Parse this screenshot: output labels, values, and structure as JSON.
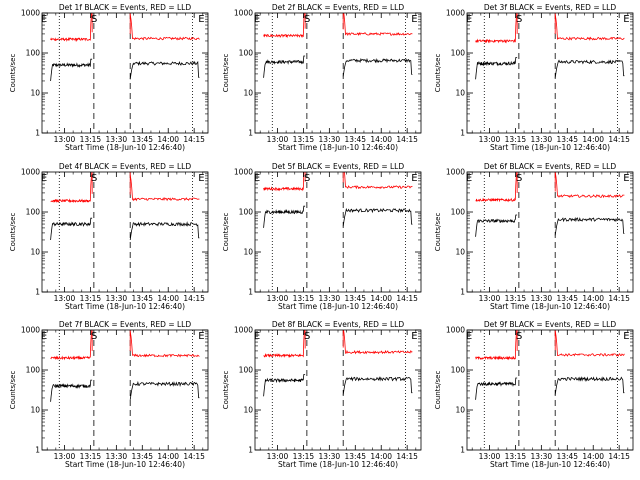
{
  "figure": {
    "background": "#ffffff",
    "axis_color": "#000000",
    "events_color": "#000000",
    "lld_color": "#ff0000"
  },
  "chart_data": [
    {
      "type": "line",
      "title": "Det 1f BLACK = Events, RED = LLD",
      "xlabel": "Start Time (18-Jun-10 12:46:40)",
      "ylabel": "Counts/sec",
      "yscale": "log",
      "ylim": [
        1,
        1000
      ],
      "xlim": [
        "12:47",
        "14:23"
      ],
      "x_ticks": [
        "13:00",
        "13:15",
        "13:30",
        "13:45",
        "14:00",
        "14:15"
      ],
      "y_ticks": [
        "1",
        "10",
        "100",
        "1000"
      ],
      "markers": [
        {
          "label": "E",
          "time": "12:47"
        },
        {
          "label": "S",
          "time": "13:16"
        },
        {
          "label": "E",
          "time": "14:18"
        }
      ],
      "dotted_lines": [
        "12:57",
        "14:14"
      ],
      "dashed_lines": [
        "13:17",
        "13:38"
      ],
      "series": [
        {
          "name": "Events",
          "color": "#000000",
          "segments": [
            {
              "start": "12:52",
              "end": "13:16",
              "level": 50
            },
            {
              "start": "13:38",
              "end": "14:18",
              "level": 55
            }
          ]
        },
        {
          "name": "LLD",
          "color": "#ff0000",
          "segments": [
            {
              "start": "12:52",
              "end": "13:16",
              "level": 220
            },
            {
              "start": "13:38",
              "end": "14:18",
              "level": 230
            }
          ]
        }
      ]
    },
    {
      "type": "line",
      "title": "Det 2f BLACK = Events, RED = LLD",
      "xlabel": "Start Time (18-Jun-10 12:46:40)",
      "ylabel": "Counts/sec",
      "yscale": "log",
      "ylim": [
        1,
        1000
      ],
      "xlim": [
        "12:47",
        "14:23"
      ],
      "x_ticks": [
        "13:00",
        "13:15",
        "13:30",
        "13:45",
        "14:00",
        "14:15"
      ],
      "y_ticks": [
        "1",
        "10",
        "100",
        "1000"
      ],
      "markers": [
        {
          "label": "E",
          "time": "12:47"
        },
        {
          "label": "S",
          "time": "13:16"
        },
        {
          "label": "E",
          "time": "14:18"
        }
      ],
      "dotted_lines": [
        "12:57",
        "14:14"
      ],
      "dashed_lines": [
        "13:17",
        "13:38"
      ],
      "series": [
        {
          "name": "Events",
          "color": "#000000",
          "segments": [
            {
              "start": "12:52",
              "end": "13:16",
              "level": 60
            },
            {
              "start": "13:38",
              "end": "14:18",
              "level": 65
            }
          ]
        },
        {
          "name": "LLD",
          "color": "#ff0000",
          "segments": [
            {
              "start": "12:52",
              "end": "13:16",
              "level": 270
            },
            {
              "start": "13:38",
              "end": "14:18",
              "level": 300
            }
          ]
        }
      ]
    },
    {
      "type": "line",
      "title": "Det 3f BLACK = Events, RED = LLD",
      "xlabel": "Start Time (18-Jun-10 12:46:40)",
      "ylabel": "Counts/sec",
      "yscale": "log",
      "ylim": [
        1,
        1000
      ],
      "xlim": [
        "12:47",
        "14:23"
      ],
      "x_ticks": [
        "13:00",
        "13:15",
        "13:30",
        "13:45",
        "14:00",
        "14:15"
      ],
      "y_ticks": [
        "1",
        "10",
        "100",
        "1000"
      ],
      "markers": [
        {
          "label": "E",
          "time": "12:47"
        },
        {
          "label": "S",
          "time": "13:16"
        },
        {
          "label": "E",
          "time": "14:18"
        }
      ],
      "dotted_lines": [
        "12:57",
        "14:14"
      ],
      "dashed_lines": [
        "13:17",
        "13:38"
      ],
      "series": [
        {
          "name": "Events",
          "color": "#000000",
          "segments": [
            {
              "start": "12:52",
              "end": "13:16",
              "level": 55
            },
            {
              "start": "13:38",
              "end": "14:18",
              "level": 60
            }
          ]
        },
        {
          "name": "LLD",
          "color": "#ff0000",
          "segments": [
            {
              "start": "12:52",
              "end": "13:16",
              "level": 200
            },
            {
              "start": "13:38",
              "end": "14:18",
              "level": 230
            }
          ]
        }
      ]
    },
    {
      "type": "line",
      "title": "Det 4f BLACK = Events, RED = LLD",
      "xlabel": "Start Time (18-Jun-10 12:46:40)",
      "ylabel": "Counts/sec",
      "yscale": "log",
      "ylim": [
        1,
        1000
      ],
      "xlim": [
        "12:47",
        "14:23"
      ],
      "x_ticks": [
        "13:00",
        "13:15",
        "13:30",
        "13:45",
        "14:00",
        "14:15"
      ],
      "y_ticks": [
        "1",
        "10",
        "100",
        "1000"
      ],
      "markers": [
        {
          "label": "E",
          "time": "12:47"
        },
        {
          "label": "S",
          "time": "13:16"
        },
        {
          "label": "E",
          "time": "14:18"
        }
      ],
      "dotted_lines": [
        "12:57",
        "14:14"
      ],
      "dashed_lines": [
        "13:17",
        "13:38"
      ],
      "series": [
        {
          "name": "Events",
          "color": "#000000",
          "segments": [
            {
              "start": "12:52",
              "end": "13:16",
              "level": 50
            },
            {
              "start": "13:38",
              "end": "14:18",
              "level": 50
            }
          ]
        },
        {
          "name": "LLD",
          "color": "#ff0000",
          "segments": [
            {
              "start": "12:52",
              "end": "13:16",
              "level": 190
            },
            {
              "start": "13:38",
              "end": "14:18",
              "level": 210
            }
          ]
        }
      ]
    },
    {
      "type": "line",
      "title": "Det 5f BLACK = Events, RED = LLD",
      "xlabel": "Start Time (18-Jun-10 12:46:40)",
      "ylabel": "Counts/sec",
      "yscale": "log",
      "ylim": [
        1,
        1000
      ],
      "xlim": [
        "12:47",
        "14:23"
      ],
      "x_ticks": [
        "13:00",
        "13:15",
        "13:30",
        "13:45",
        "14:00",
        "14:15"
      ],
      "y_ticks": [
        "1",
        "10",
        "100",
        "1000"
      ],
      "markers": [
        {
          "label": "E",
          "time": "12:47"
        },
        {
          "label": "S",
          "time": "13:16"
        },
        {
          "label": "E",
          "time": "14:18"
        }
      ],
      "dotted_lines": [
        "12:57",
        "14:14"
      ],
      "dashed_lines": [
        "13:17",
        "13:38"
      ],
      "series": [
        {
          "name": "Events",
          "color": "#000000",
          "segments": [
            {
              "start": "12:52",
              "end": "13:16",
              "level": 100
            },
            {
              "start": "13:38",
              "end": "14:18",
              "level": 110
            }
          ]
        },
        {
          "name": "LLD",
          "color": "#ff0000",
          "segments": [
            {
              "start": "12:52",
              "end": "13:16",
              "level": 380
            },
            {
              "start": "13:38",
              "end": "14:18",
              "level": 420
            }
          ]
        }
      ]
    },
    {
      "type": "line",
      "title": "Det 6f BLACK = Events, RED = LLD",
      "xlabel": "Start Time (18-Jun-10 12:46:40)",
      "ylabel": "Counts/sec",
      "yscale": "log",
      "ylim": [
        1,
        1000
      ],
      "xlim": [
        "12:47",
        "14:23"
      ],
      "x_ticks": [
        "13:00",
        "13:15",
        "13:30",
        "13:45",
        "14:00",
        "14:15"
      ],
      "y_ticks": [
        "1",
        "10",
        "100",
        "1000"
      ],
      "markers": [
        {
          "label": "E",
          "time": "12:47"
        },
        {
          "label": "S",
          "time": "13:16"
        },
        {
          "label": "E",
          "time": "14:18"
        }
      ],
      "dotted_lines": [
        "12:57",
        "14:14"
      ],
      "dashed_lines": [
        "13:17",
        "13:38"
      ],
      "series": [
        {
          "name": "Events",
          "color": "#000000",
          "segments": [
            {
              "start": "12:52",
              "end": "13:16",
              "level": 60
            },
            {
              "start": "13:38",
              "end": "14:18",
              "level": 65
            }
          ]
        },
        {
          "name": "LLD",
          "color": "#ff0000",
          "segments": [
            {
              "start": "12:52",
              "end": "13:16",
              "level": 200
            },
            {
              "start": "13:38",
              "end": "14:18",
              "level": 250
            }
          ]
        }
      ]
    },
    {
      "type": "line",
      "title": "Det 7f BLACK = Events, RED = LLD",
      "xlabel": "Start Time (18-Jun-10 12:46:40)",
      "ylabel": "Counts/sec",
      "yscale": "log",
      "ylim": [
        1,
        1000
      ],
      "xlim": [
        "12:47",
        "14:23"
      ],
      "x_ticks": [
        "13:00",
        "13:15",
        "13:30",
        "13:45",
        "14:00",
        "14:15"
      ],
      "y_ticks": [
        "1",
        "10",
        "100",
        "1000"
      ],
      "markers": [
        {
          "label": "E",
          "time": "12:47"
        },
        {
          "label": "S",
          "time": "13:16"
        },
        {
          "label": "E",
          "time": "14:18"
        }
      ],
      "dotted_lines": [
        "12:57",
        "14:14"
      ],
      "dashed_lines": [
        "13:17",
        "13:38"
      ],
      "series": [
        {
          "name": "Events",
          "color": "#000000",
          "segments": [
            {
              "start": "12:52",
              "end": "13:16",
              "level": 40
            },
            {
              "start": "13:38",
              "end": "14:18",
              "level": 45
            }
          ]
        },
        {
          "name": "LLD",
          "color": "#ff0000",
          "segments": [
            {
              "start": "12:52",
              "end": "13:16",
              "level": 200
            },
            {
              "start": "13:38",
              "end": "14:18",
              "level": 230
            }
          ]
        }
      ]
    },
    {
      "type": "line",
      "title": "Det 8f BLACK = Events, RED = LLD",
      "xlabel": "Start Time (18-Jun-10 12:46:40)",
      "ylabel": "Counts/sec",
      "yscale": "log",
      "ylim": [
        1,
        1000
      ],
      "xlim": [
        "12:47",
        "14:23"
      ],
      "x_ticks": [
        "13:00",
        "13:15",
        "13:30",
        "13:45",
        "14:00",
        "14:15"
      ],
      "y_ticks": [
        "1",
        "10",
        "100",
        "1000"
      ],
      "markers": [
        {
          "label": "E",
          "time": "12:47"
        },
        {
          "label": "S",
          "time": "13:16"
        },
        {
          "label": "E",
          "time": "14:18"
        }
      ],
      "dotted_lines": [
        "12:57",
        "14:14"
      ],
      "dashed_lines": [
        "13:17",
        "13:38"
      ],
      "series": [
        {
          "name": "Events",
          "color": "#000000",
          "segments": [
            {
              "start": "12:52",
              "end": "13:16",
              "level": 55
            },
            {
              "start": "13:38",
              "end": "14:18",
              "level": 60
            }
          ]
        },
        {
          "name": "LLD",
          "color": "#ff0000",
          "segments": [
            {
              "start": "12:52",
              "end": "13:16",
              "level": 230
            },
            {
              "start": "13:38",
              "end": "14:18",
              "level": 280
            }
          ]
        }
      ]
    },
    {
      "type": "line",
      "title": "Det 9f BLACK = Events, RED = LLD",
      "xlabel": "Start Time (18-Jun-10 12:46:40)",
      "ylabel": "Counts/sec",
      "yscale": "log",
      "ylim": [
        1,
        1000
      ],
      "xlim": [
        "12:47",
        "14:23"
      ],
      "x_ticks": [
        "13:00",
        "13:15",
        "13:30",
        "13:45",
        "14:00",
        "14:15"
      ],
      "y_ticks": [
        "1",
        "10",
        "100",
        "1000"
      ],
      "markers": [
        {
          "label": "E",
          "time": "12:47"
        },
        {
          "label": "S",
          "time": "13:16"
        },
        {
          "label": "E",
          "time": "14:18"
        }
      ],
      "dotted_lines": [
        "12:57",
        "14:14"
      ],
      "dashed_lines": [
        "13:17",
        "13:38"
      ],
      "series": [
        {
          "name": "Events",
          "color": "#000000",
          "segments": [
            {
              "start": "12:52",
              "end": "13:16",
              "level": 45
            },
            {
              "start": "13:38",
              "end": "14:18",
              "level": 60
            }
          ]
        },
        {
          "name": "LLD",
          "color": "#ff0000",
          "segments": [
            {
              "start": "12:52",
              "end": "13:16",
              "level": 200
            },
            {
              "start": "13:38",
              "end": "14:18",
              "level": 240
            }
          ]
        }
      ]
    }
  ]
}
